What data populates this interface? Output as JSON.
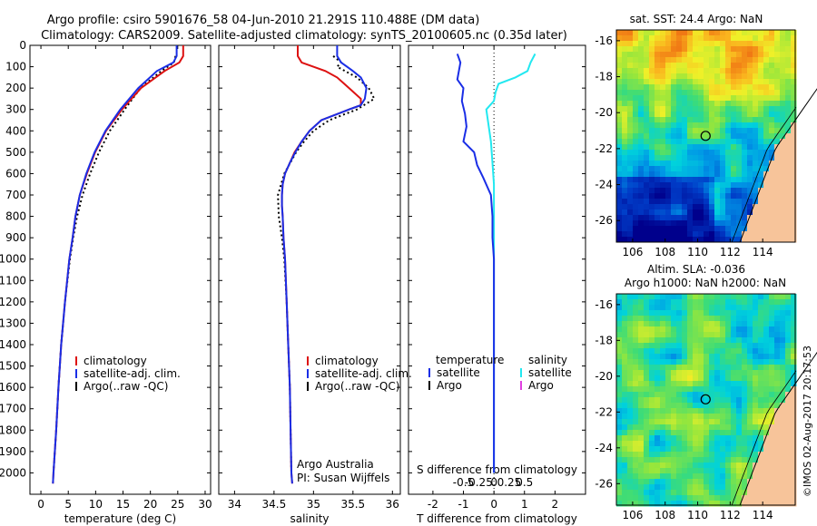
{
  "header": {
    "line1": "Argo profile: csiro 5901676_58 04-Jun-2010 21.291S 110.488E (DM data)",
    "line2": "Climatology: CARS2009. Satellite-adjusted climatology: synTS_20100605.nc (0.35d later)"
  },
  "footer": {
    "timestamp": "©IMOS 02-Aug-2017 20:17:53",
    "agency": "Argo Australia",
    "pi": "PI: Susan Wijffels"
  },
  "colors": {
    "climatology": "#dd1111",
    "satellite": "#1a2ee6",
    "argo": "#000000",
    "salinity_satellite": "#22e8f0",
    "salinity_argo": "#e040e0",
    "land": "#f7c49a"
  },
  "chart_data": [
    {
      "id": "temperature",
      "type": "line",
      "xlabel": "temperature (deg C)",
      "ylabel": "",
      "xlim": [
        -2,
        31
      ],
      "ylim": [
        2100,
        0
      ],
      "xticks": [
        0,
        5,
        10,
        15,
        20,
        25,
        30
      ],
      "yticks": [
        0,
        100,
        200,
        300,
        400,
        500,
        600,
        700,
        800,
        900,
        1000,
        1100,
        1200,
        1300,
        1400,
        1500,
        1600,
        1700,
        1800,
        1900,
        2000
      ],
      "legend": [
        "climatology",
        "satellite-adj. clim.",
        "Argo(..raw -QC)"
      ],
      "series": [
        {
          "name": "climatology",
          "depth": [
            0,
            50,
            80,
            120,
            200,
            300,
            400,
            500,
            600,
            700,
            800,
            900,
            1000,
            1200,
            1400,
            1600,
            1800,
            2000,
            2050
          ],
          "values": [
            26,
            26,
            25.3,
            22.6,
            18.3,
            14.8,
            11.9,
            9.9,
            8.4,
            7.1,
            6.3,
            5.8,
            5.2,
            4.4,
            3.7,
            3.2,
            2.8,
            2.3,
            2.2
          ]
        },
        {
          "name": "satellite-adj. clim.",
          "depth": [
            0,
            50,
            80,
            120,
            200,
            300,
            400,
            500,
            600,
            700,
            800,
            900,
            1000,
            1200,
            1400,
            1600,
            1800,
            2000,
            2050
          ],
          "values": [
            24.8,
            24.8,
            24.2,
            21.2,
            17.8,
            14.5,
            11.8,
            9.8,
            8.3,
            7.1,
            6.3,
            5.8,
            5.2,
            4.4,
            3.7,
            3.2,
            2.8,
            2.3,
            2.2
          ]
        },
        {
          "name": "Argo(..raw -QC)",
          "depth": [
            50,
            80,
            120,
            200,
            300,
            400,
            500,
            600,
            700,
            800,
            900,
            1000,
            1200,
            1400,
            1600,
            1800,
            2000
          ],
          "values": [
            24.6,
            24.3,
            22,
            18.2,
            15.3,
            12.6,
            10.6,
            9,
            7.6,
            6.6,
            5.9,
            5.3,
            4.4,
            3.7,
            3.2,
            2.8,
            2.3
          ]
        }
      ]
    },
    {
      "id": "salinity",
      "type": "line",
      "xlabel": "salinity",
      "ylabel": "",
      "xlim": [
        33.8,
        36.1
      ],
      "ylim": [
        2100,
        0
      ],
      "xticks": [
        34,
        34.5,
        35,
        35.5,
        36
      ],
      "legend": [
        "climatology",
        "satellite-adj. clim.",
        "Argo(..raw -QC)"
      ],
      "series": [
        {
          "name": "climatology",
          "depth": [
            0,
            50,
            80,
            120,
            150,
            200,
            250,
            280,
            300,
            350,
            400,
            450,
            500,
            550,
            600,
            650,
            700,
            750,
            800,
            900,
            1000,
            1200,
            1400,
            1600,
            1800,
            2000,
            2050
          ],
          "values": [
            34.8,
            34.8,
            34.85,
            35.15,
            35.3,
            35.45,
            35.6,
            35.6,
            35.45,
            35.1,
            34.95,
            34.85,
            34.76,
            34.7,
            34.64,
            34.61,
            34.6,
            34.6,
            34.61,
            34.62,
            34.64,
            34.66,
            34.68,
            34.7,
            34.71,
            34.72,
            34.73
          ]
        },
        {
          "name": "satellite-adj. clim.",
          "depth": [
            0,
            50,
            80,
            120,
            150,
            200,
            250,
            280,
            300,
            350,
            400,
            450,
            500,
            550,
            600,
            650,
            700,
            750,
            800,
            900,
            1000,
            1200,
            1400,
            1600,
            1800,
            2000,
            2050
          ],
          "values": [
            35.3,
            35.3,
            35.35,
            35.5,
            35.6,
            35.67,
            35.65,
            35.6,
            35.45,
            35.1,
            34.95,
            34.85,
            34.77,
            34.7,
            34.64,
            34.61,
            34.6,
            34.6,
            34.61,
            34.62,
            34.64,
            34.66,
            34.68,
            34.7,
            34.71,
            34.72,
            34.73
          ]
        },
        {
          "name": "Argo(..raw -QC)",
          "depth": [
            50,
            80,
            100,
            150,
            200,
            250,
            300,
            350,
            400,
            450,
            500,
            600,
            700,
            800,
            900,
            1000,
            1200,
            1400,
            1600,
            1800,
            2000
          ],
          "values": [
            35.25,
            35.35,
            35.3,
            35.55,
            35.7,
            35.77,
            35.55,
            35.2,
            35.0,
            34.88,
            34.78,
            34.63,
            34.55,
            34.56,
            34.6,
            34.63,
            34.66,
            34.68,
            34.7,
            34.71,
            34.72
          ]
        }
      ]
    },
    {
      "id": "difference",
      "type": "line",
      "xlabel": "T difference from climatology",
      "title": "S difference from climatology",
      "xlim": [
        -2.8,
        3
      ],
      "ylim": [
        2100,
        0
      ],
      "xticks": [
        -2,
        -1,
        0,
        1,
        2
      ],
      "top_ticks": [
        -0.5,
        -0.25,
        0,
        0.25,
        0.5
      ],
      "top_tick_labels": [
        "-0.5",
        "-0.25",
        "0",
        "0.25",
        "0.5"
      ],
      "legend_groups": [
        {
          "heading": "temperature",
          "items": [
            "satellite",
            "Argo"
          ]
        },
        {
          "heading": "salinity",
          "items": [
            "satellite",
            "Argo"
          ]
        }
      ],
      "series": [
        {
          "name": "temperature satellite",
          "depth": [
            40,
            80,
            120,
            160,
            200,
            260,
            320,
            380,
            450,
            500,
            560,
            620,
            700,
            800,
            900,
            1000,
            1200,
            1500,
            2000
          ],
          "values": [
            -1.2,
            -1.1,
            -1.15,
            -1.2,
            -1.0,
            -1.05,
            -0.95,
            -0.9,
            -1.0,
            -0.65,
            -0.55,
            -0.35,
            -0.1,
            -0.05,
            -0.05,
            0,
            0,
            0,
            0
          ]
        },
        {
          "name": "salinity satellite",
          "depth": [
            40,
            80,
            120,
            150,
            180,
            220,
            260,
            300,
            350,
            450,
            550,
            650,
            750,
            850,
            1000,
            1200,
            1500,
            2000
          ],
          "values": [
            1.35,
            1.2,
            1.1,
            0.7,
            0.15,
            0.05,
            0.0,
            -0.25,
            -0.2,
            -0.1,
            -0.05,
            0,
            0,
            0,
            0,
            0,
            0,
            0
          ]
        }
      ]
    },
    {
      "id": "map-sst",
      "type": "heatmap",
      "title": "sat. SST: 24.4  Argo: NaN",
      "xticks": [
        106,
        108,
        110,
        112,
        114
      ],
      "yticks": [
        -16,
        -18,
        -20,
        -22,
        -24,
        -26
      ],
      "xlim": [
        105,
        116
      ],
      "ylim": [
        -27.2,
        -15.4
      ],
      "marker": {
        "lon": 110.488,
        "lat": -21.291
      }
    },
    {
      "id": "map-sla",
      "type": "heatmap",
      "title": "Altim. SLA: -0.036",
      "subtitle": "Argo h1000: NaN h2000: NaN",
      "xticks": [
        106,
        108,
        110,
        112,
        114
      ],
      "yticks": [
        -16,
        -18,
        -20,
        -22,
        -24,
        -26
      ],
      "xlim": [
        105,
        116
      ],
      "ylim": [
        -27.2,
        -15.4
      ],
      "marker": {
        "lon": 110.488,
        "lat": -21.291
      }
    }
  ]
}
